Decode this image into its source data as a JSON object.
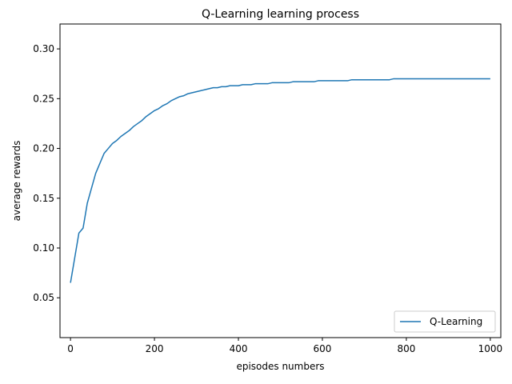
{
  "chart_data": {
    "type": "line",
    "title": "Q-Learning learning process",
    "xlabel": "episodes numbers",
    "ylabel": "average rewards",
    "xlim": [
      -25,
      1025
    ],
    "ylim": [
      0.01,
      0.325
    ],
    "xticks": [
      0,
      200,
      400,
      600,
      800,
      1000
    ],
    "yticks": [
      0.05,
      0.1,
      0.15,
      0.2,
      0.25,
      0.3
    ],
    "xtick_labels": [
      "0",
      "200",
      "400",
      "600",
      "800",
      "1000"
    ],
    "ytick_labels": [
      "0.05",
      "0.10",
      "0.15",
      "0.20",
      "0.25",
      "0.30"
    ],
    "grid": false,
    "legend_position": "lower-right",
    "series_color": "#1f77b4",
    "series": [
      {
        "name": "Q-Learning",
        "x_start": 0,
        "x_step": 10,
        "values": [
          0.065,
          0.09,
          0.115,
          0.12,
          0.145,
          0.16,
          0.175,
          0.185,
          0.195,
          0.2,
          0.205,
          0.208,
          0.212,
          0.215,
          0.218,
          0.222,
          0.225,
          0.228,
          0.232,
          0.235,
          0.238,
          0.24,
          0.243,
          0.245,
          0.248,
          0.25,
          0.252,
          0.253,
          0.255,
          0.256,
          0.257,
          0.258,
          0.259,
          0.26,
          0.261,
          0.261,
          0.262,
          0.262,
          0.263,
          0.263,
          0.263,
          0.264,
          0.264,
          0.264,
          0.265,
          0.265,
          0.265,
          0.265,
          0.266,
          0.266,
          0.266,
          0.266,
          0.266,
          0.267,
          0.267,
          0.267,
          0.267,
          0.267,
          0.267,
          0.268,
          0.268,
          0.268,
          0.268,
          0.268,
          0.268,
          0.268,
          0.268,
          0.269,
          0.269,
          0.269,
          0.269,
          0.269,
          0.269,
          0.269,
          0.269,
          0.269,
          0.269,
          0.27,
          0.27,
          0.27,
          0.27,
          0.27,
          0.27,
          0.27,
          0.27,
          0.27,
          0.27,
          0.27,
          0.27,
          0.27,
          0.27,
          0.27,
          0.27,
          0.27,
          0.27,
          0.27,
          0.27,
          0.27,
          0.27,
          0.27,
          0.27
        ]
      }
    ]
  }
}
